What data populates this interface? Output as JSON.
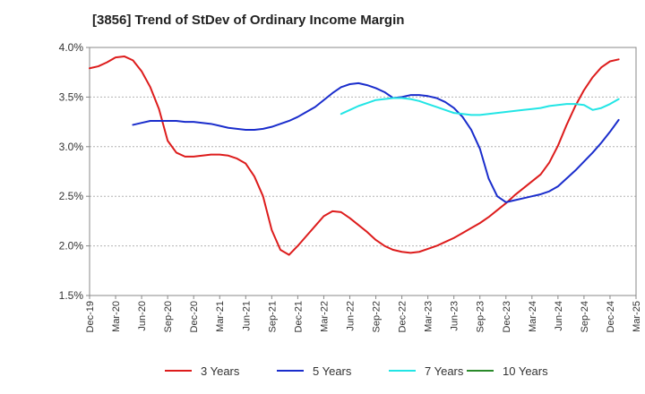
{
  "chart_data": {
    "type": "line",
    "title": "[3856]  Trend of StDev of Ordinary Income Margin",
    "xlabel": "",
    "ylabel": "",
    "x_ticks": [
      "Dec-19",
      "Mar-20",
      "Jun-20",
      "Sep-20",
      "Dec-20",
      "Mar-21",
      "Jun-21",
      "Sep-21",
      "Dec-21",
      "Mar-22",
      "Jun-22",
      "Sep-22",
      "Dec-22",
      "Mar-23",
      "Jun-23",
      "Sep-23",
      "Dec-23",
      "Mar-24",
      "Jun-24",
      "Sep-24",
      "Dec-24",
      "Mar-25"
    ],
    "y_ticks": [
      "1.5%",
      "2.0%",
      "2.5%",
      "3.0%",
      "3.5%",
      "4.0%"
    ],
    "ylim": [
      1.5,
      4.0
    ],
    "grid": "horizontal dashed",
    "legend_position": "bottom",
    "series": [
      {
        "name": "3 Years",
        "color": "#dd1c1c",
        "points": [
          [
            "Dec-19",
            3.79
          ],
          [
            "Jan-20",
            3.81
          ],
          [
            "Feb-20",
            3.85
          ],
          [
            "Mar-20",
            3.9
          ],
          [
            "Apr-20",
            3.91
          ],
          [
            "May-20",
            3.87
          ],
          [
            "Jun-20",
            3.76
          ],
          [
            "Jul-20",
            3.6
          ],
          [
            "Aug-20",
            3.38
          ],
          [
            "Sep-20",
            3.06
          ],
          [
            "Oct-20",
            2.94
          ],
          [
            "Nov-20",
            2.9
          ],
          [
            "Dec-20",
            2.9
          ],
          [
            "Jan-21",
            2.91
          ],
          [
            "Feb-21",
            2.92
          ],
          [
            "Mar-21",
            2.92
          ],
          [
            "Apr-21",
            2.91
          ],
          [
            "May-21",
            2.88
          ],
          [
            "Jun-21",
            2.83
          ],
          [
            "Jul-21",
            2.7
          ],
          [
            "Aug-21",
            2.5
          ],
          [
            "Sep-21",
            2.16
          ],
          [
            "Oct-21",
            1.96
          ],
          [
            "Nov-21",
            1.91
          ],
          [
            "Dec-21",
            2.0
          ],
          [
            "Jan-22",
            2.1
          ],
          [
            "Feb-22",
            2.2
          ],
          [
            "Mar-22",
            2.3
          ],
          [
            "Apr-22",
            2.35
          ],
          [
            "May-22",
            2.34
          ],
          [
            "Jun-22",
            2.28
          ],
          [
            "Jul-22",
            2.21
          ],
          [
            "Aug-22",
            2.14
          ],
          [
            "Sep-22",
            2.06
          ],
          [
            "Oct-22",
            2.0
          ],
          [
            "Nov-22",
            1.96
          ],
          [
            "Dec-22",
            1.94
          ],
          [
            "Jan-23",
            1.93
          ],
          [
            "Feb-23",
            1.94
          ],
          [
            "Mar-23",
            1.97
          ],
          [
            "Apr-23",
            2.0
          ],
          [
            "May-23",
            2.04
          ],
          [
            "Jun-23",
            2.08
          ],
          [
            "Jul-23",
            2.13
          ],
          [
            "Aug-23",
            2.18
          ],
          [
            "Sep-23",
            2.23
          ],
          [
            "Oct-23",
            2.29
          ],
          [
            "Nov-23",
            2.36
          ],
          [
            "Dec-23",
            2.43
          ],
          [
            "Jan-24",
            2.51
          ],
          [
            "Feb-24",
            2.58
          ],
          [
            "Mar-24",
            2.65
          ],
          [
            "Apr-24",
            2.72
          ],
          [
            "May-24",
            2.84
          ],
          [
            "Jun-24",
            3.01
          ],
          [
            "Jul-24",
            3.22
          ],
          [
            "Aug-24",
            3.41
          ],
          [
            "Sep-24",
            3.57
          ],
          [
            "Oct-24",
            3.7
          ],
          [
            "Nov-24",
            3.8
          ],
          [
            "Dec-24",
            3.86
          ],
          [
            "Jan-25",
            3.88
          ]
        ]
      },
      {
        "name": "5 Years",
        "color": "#1a2dcc",
        "points": [
          [
            "May-20",
            3.22
          ],
          [
            "Jun-20",
            3.24
          ],
          [
            "Jul-20",
            3.26
          ],
          [
            "Aug-20",
            3.26
          ],
          [
            "Sep-20",
            3.26
          ],
          [
            "Oct-20",
            3.26
          ],
          [
            "Nov-20",
            3.25
          ],
          [
            "Dec-20",
            3.25
          ],
          [
            "Jan-21",
            3.24
          ],
          [
            "Feb-21",
            3.23
          ],
          [
            "Mar-21",
            3.21
          ],
          [
            "Apr-21",
            3.19
          ],
          [
            "May-21",
            3.18
          ],
          [
            "Jun-21",
            3.17
          ],
          [
            "Jul-21",
            3.17
          ],
          [
            "Aug-21",
            3.18
          ],
          [
            "Sep-21",
            3.2
          ],
          [
            "Oct-21",
            3.23
          ],
          [
            "Nov-21",
            3.26
          ],
          [
            "Dec-21",
            3.3
          ],
          [
            "Jan-22",
            3.35
          ],
          [
            "Feb-22",
            3.4
          ],
          [
            "Mar-22",
            3.47
          ],
          [
            "Apr-22",
            3.54
          ],
          [
            "May-22",
            3.6
          ],
          [
            "Jun-22",
            3.63
          ],
          [
            "Jul-22",
            3.64
          ],
          [
            "Aug-22",
            3.62
          ],
          [
            "Sep-22",
            3.59
          ],
          [
            "Oct-22",
            3.55
          ],
          [
            "Nov-22",
            3.49
          ],
          [
            "Dec-22",
            3.5
          ],
          [
            "Jan-23",
            3.52
          ],
          [
            "Feb-23",
            3.52
          ],
          [
            "Mar-23",
            3.51
          ],
          [
            "Apr-23",
            3.49
          ],
          [
            "May-23",
            3.45
          ],
          [
            "Jun-23",
            3.39
          ],
          [
            "Jul-23",
            3.3
          ],
          [
            "Aug-23",
            3.17
          ],
          [
            "Sep-23",
            2.98
          ],
          [
            "Oct-23",
            2.68
          ],
          [
            "Nov-23",
            2.5
          ],
          [
            "Dec-23",
            2.44
          ],
          [
            "Jan-24",
            2.46
          ],
          [
            "Feb-24",
            2.48
          ],
          [
            "Mar-24",
            2.5
          ],
          [
            "Apr-24",
            2.52
          ],
          [
            "May-24",
            2.55
          ],
          [
            "Jun-24",
            2.6
          ],
          [
            "Jul-24",
            2.68
          ],
          [
            "Aug-24",
            2.76
          ],
          [
            "Sep-24",
            2.85
          ],
          [
            "Oct-24",
            2.94
          ],
          [
            "Nov-24",
            3.04
          ],
          [
            "Dec-24",
            3.15
          ],
          [
            "Jan-25",
            3.27
          ]
        ]
      },
      {
        "name": "7 Years",
        "color": "#22e5e5",
        "points": [
          [
            "May-22",
            3.33
          ],
          [
            "Jun-22",
            3.37
          ],
          [
            "Jul-22",
            3.41
          ],
          [
            "Aug-22",
            3.44
          ],
          [
            "Sep-22",
            3.47
          ],
          [
            "Oct-22",
            3.48
          ],
          [
            "Nov-22",
            3.49
          ],
          [
            "Dec-22",
            3.49
          ],
          [
            "Jan-23",
            3.48
          ],
          [
            "Feb-23",
            3.46
          ],
          [
            "Mar-23",
            3.43
          ],
          [
            "Apr-23",
            3.4
          ],
          [
            "May-23",
            3.37
          ],
          [
            "Jun-23",
            3.34
          ],
          [
            "Jul-23",
            3.33
          ],
          [
            "Aug-23",
            3.32
          ],
          [
            "Sep-23",
            3.32
          ],
          [
            "Oct-23",
            3.33
          ],
          [
            "Nov-23",
            3.34
          ],
          [
            "Dec-23",
            3.35
          ],
          [
            "Jan-24",
            3.36
          ],
          [
            "Feb-24",
            3.37
          ],
          [
            "Mar-24",
            3.38
          ],
          [
            "Apr-24",
            3.39
          ],
          [
            "May-24",
            3.41
          ],
          [
            "Jun-24",
            3.42
          ],
          [
            "Jul-24",
            3.43
          ],
          [
            "Aug-24",
            3.43
          ],
          [
            "Sep-24",
            3.42
          ],
          [
            "Oct-24",
            3.37
          ],
          [
            "Nov-24",
            3.39
          ],
          [
            "Dec-24",
            3.43
          ],
          [
            "Jan-25",
            3.48
          ]
        ]
      },
      {
        "name": "10 Years",
        "color": "#2a8a2a",
        "points": []
      }
    ]
  }
}
